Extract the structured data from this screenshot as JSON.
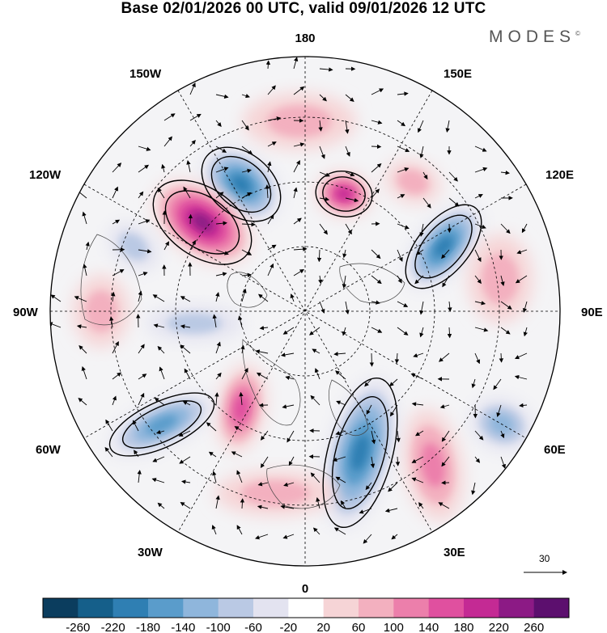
{
  "title": "Base 02/01/2026 00 UTC, valid 09/01/2026 12 UTC",
  "brand": {
    "name": "MODES",
    "mark": "©"
  },
  "longitude_labels": {
    "top": "180",
    "bottom": "0",
    "left": "90W",
    "right": "90E",
    "upper_left": "150W",
    "upper_right": "150E",
    "mid_upper_left": "120W",
    "mid_upper_right": "120E",
    "mid_lower_left": "60W",
    "mid_lower_right": "60E",
    "lower_left": "30W",
    "lower_right": "30E"
  },
  "vector_reference": {
    "value": "30"
  },
  "colorbar": {
    "ticks": [
      "-260",
      "-220",
      "-180",
      "-140",
      "-100",
      "-60",
      "-20",
      "20",
      "60",
      "100",
      "140",
      "180",
      "220",
      "260"
    ],
    "colors": [
      "#0b3d5e",
      "#155f8a",
      "#2f7fb3",
      "#5a9ccb",
      "#8fb6dc",
      "#bac9e4",
      "#e3e3f0",
      "#ffffff",
      "#f6d4d6",
      "#f3b0bf",
      "#ec7fab",
      "#e0509f",
      "#c42a94",
      "#8c1a85",
      "#5c0f6e"
    ]
  },
  "anomalies": [
    {
      "name": "blue-150w",
      "value": -200
    },
    {
      "name": "red-135w",
      "value": 240
    },
    {
      "name": "red-165e",
      "value": 180
    },
    {
      "name": "red-140e",
      "value": 80
    },
    {
      "name": "blue-115e",
      "value": -200
    },
    {
      "name": "red-90e",
      "value": 80
    },
    {
      "name": "blue-55e",
      "value": -100
    },
    {
      "name": "red-35e",
      "value": 100
    },
    {
      "name": "blue-15e",
      "value": -200
    },
    {
      "name": "red-0",
      "value": 80
    },
    {
      "name": "red-35w",
      "value": 140
    },
    {
      "name": "blue-50w",
      "value": -160
    },
    {
      "name": "red-90w",
      "value": 60
    },
    {
      "name": "blue-80w",
      "value": -60
    },
    {
      "name": "blue-110w",
      "value": -60
    },
    {
      "name": "red-175w",
      "value": 60
    }
  ]
}
